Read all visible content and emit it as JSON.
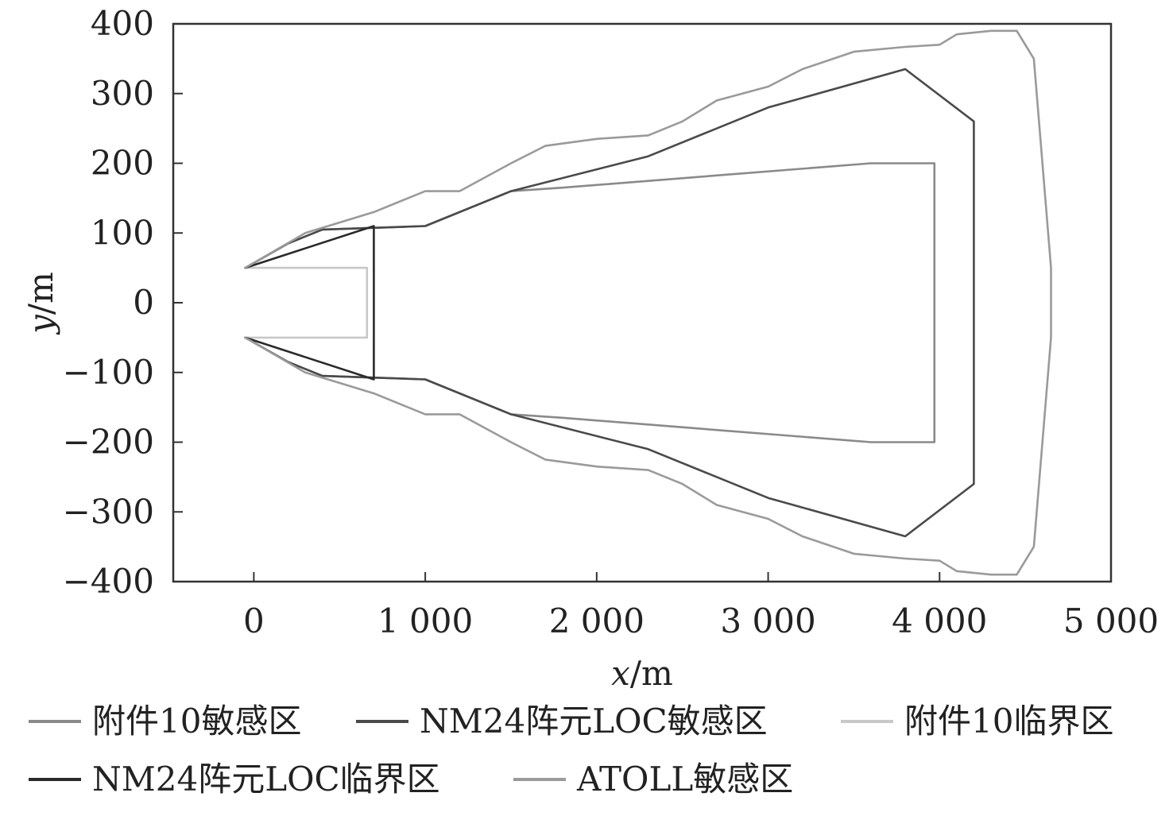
{
  "chart_data": {
    "type": "line",
    "title": "",
    "xlabel": {
      "italic": "x",
      "rest": "/m"
    },
    "ylabel": {
      "italic": "y",
      "rest": "/m"
    },
    "xlim": [
      -470,
      5000
    ],
    "ylim": [
      -400,
      400
    ],
    "x_ticks": [
      {
        "value": 0,
        "label": "0"
      },
      {
        "value": 1000,
        "label": "1 000"
      },
      {
        "value": 2000,
        "label": "2 000"
      },
      {
        "value": 3000,
        "label": "3 000"
      },
      {
        "value": 4000,
        "label": "4 000"
      },
      {
        "value": 5000,
        "label": "5 000"
      }
    ],
    "y_ticks": [
      {
        "value": 400,
        "label": "400"
      },
      {
        "value": 300,
        "label": "300"
      },
      {
        "value": 200,
        "label": "200"
      },
      {
        "value": 100,
        "label": "100"
      },
      {
        "value": 0,
        "label": "0"
      },
      {
        "value": -100,
        "label": "−100"
      },
      {
        "value": -200,
        "label": "−200"
      },
      {
        "value": -300,
        "label": "−300"
      },
      {
        "value": -400,
        "label": "−400"
      }
    ],
    "grid": false,
    "legend_position": "bottom",
    "series": [
      {
        "name": "附件10敏感区",
        "color": "#8a8a8a",
        "points": [
          [
            -50,
            50
          ],
          [
            200,
            85
          ],
          [
            400,
            105
          ],
          [
            1000,
            110
          ],
          [
            1500,
            160
          ],
          [
            1800,
            165
          ],
          [
            3600,
            200
          ],
          [
            3970,
            200
          ],
          [
            3970,
            -200
          ],
          [
            3600,
            -200
          ],
          [
            1800,
            -165
          ],
          [
            1500,
            -160
          ],
          [
            1000,
            -110
          ],
          [
            400,
            -105
          ],
          [
            200,
            -85
          ],
          [
            -50,
            -50
          ]
        ]
      },
      {
        "name": "NM24阵元LOC敏感区",
        "color": "#4a4a4a",
        "points": [
          [
            -50,
            50
          ],
          [
            200,
            85
          ],
          [
            400,
            105
          ],
          [
            1000,
            110
          ],
          [
            1500,
            160
          ],
          [
            2300,
            210
          ],
          [
            3000,
            280
          ],
          [
            3800,
            335
          ],
          [
            4200,
            260
          ],
          [
            4200,
            -260
          ],
          [
            3800,
            -335
          ],
          [
            3000,
            -280
          ],
          [
            2300,
            -210
          ],
          [
            1500,
            -160
          ],
          [
            1000,
            -110
          ],
          [
            400,
            -105
          ],
          [
            200,
            -85
          ],
          [
            -50,
            -50
          ]
        ]
      },
      {
        "name": "附件10临界区",
        "color": "#c8c8c8",
        "points": [
          [
            -50,
            50
          ],
          [
            660,
            50
          ],
          [
            660,
            -50
          ],
          [
            -50,
            -50
          ]
        ]
      },
      {
        "name": "NM24阵元LOC临界区",
        "color": "#2a2a2a",
        "points": [
          [
            -50,
            50
          ],
          [
            700,
            110
          ],
          [
            700,
            -110
          ],
          [
            -50,
            -50
          ]
        ]
      },
      {
        "name": "ATOLL敏感区",
        "color": "#9a9a9a",
        "points": [
          [
            -50,
            50
          ],
          [
            300,
            100
          ],
          [
            700,
            130
          ],
          [
            1000,
            160
          ],
          [
            1200,
            160
          ],
          [
            1500,
            200
          ],
          [
            1700,
            225
          ],
          [
            2000,
            235
          ],
          [
            2300,
            240
          ],
          [
            2500,
            260
          ],
          [
            2700,
            290
          ],
          [
            3000,
            310
          ],
          [
            3200,
            335
          ],
          [
            3500,
            360
          ],
          [
            3800,
            367
          ],
          [
            4000,
            370
          ],
          [
            4100,
            385
          ],
          [
            4300,
            390
          ],
          [
            4450,
            390
          ],
          [
            4550,
            350
          ],
          [
            4650,
            50
          ],
          [
            4650,
            -50
          ],
          [
            4550,
            -350
          ],
          [
            4450,
            -390
          ],
          [
            4300,
            -390
          ],
          [
            4100,
            -385
          ],
          [
            4000,
            -370
          ],
          [
            3800,
            -367
          ],
          [
            3500,
            -360
          ],
          [
            3200,
            -335
          ],
          [
            3000,
            -310
          ],
          [
            2700,
            -290
          ],
          [
            2500,
            -260
          ],
          [
            2300,
            -240
          ],
          [
            2000,
            -235
          ],
          [
            1700,
            -225
          ],
          [
            1500,
            -200
          ],
          [
            1200,
            -160
          ],
          [
            1000,
            -160
          ],
          [
            700,
            -130
          ],
          [
            300,
            -100
          ],
          [
            -50,
            -50
          ]
        ]
      }
    ]
  }
}
